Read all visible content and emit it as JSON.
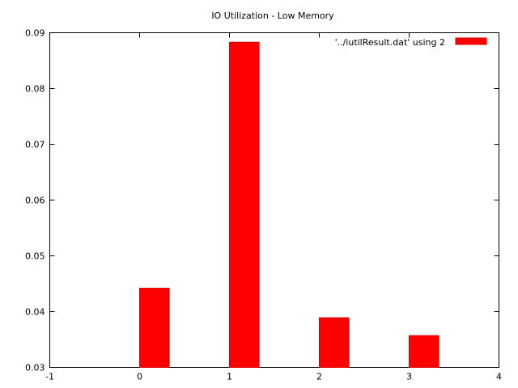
{
  "chart_data": {
    "type": "bar",
    "title": "IO Utilization - Low Memory",
    "xlabel": "",
    "ylabel": "",
    "x": [
      0,
      1,
      2,
      3
    ],
    "series": [
      {
        "name": "'../iutilResult.dat' using 2",
        "values": [
          0.0442,
          0.0883,
          0.0389,
          0.0357
        ],
        "color": "#ff0000"
      }
    ],
    "xlim": [
      -1,
      4
    ],
    "ylim": [
      0.03,
      0.09
    ],
    "xticks": [
      "-1",
      "0",
      "1",
      "2",
      "3",
      "4"
    ],
    "yticks": [
      "0.03",
      "0.04",
      "0.05",
      "0.06",
      "0.07",
      "0.08",
      "0.09"
    ],
    "grid": false,
    "legend_position": "top-right",
    "bar_width": 0.33
  }
}
